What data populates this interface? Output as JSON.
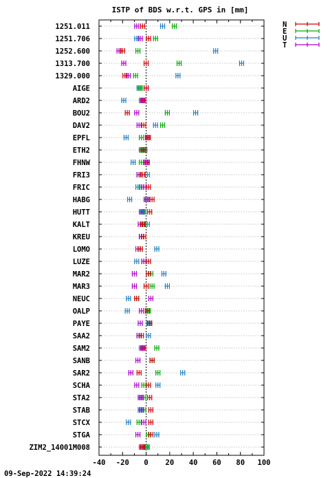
{
  "chart_data": {
    "type": "scatter",
    "title": "ISTP of BDS w.r.t. GPS in [mm]",
    "xlim": [
      -40,
      100
    ],
    "xticks": [
      -40,
      -20,
      0,
      20,
      40,
      60,
      80,
      100
    ],
    "xtick_labels": [
      "-40",
      "-20",
      "0",
      "20",
      "40",
      "60",
      "80",
      "100"
    ],
    "grid": true,
    "legend_placement": "top-right, outside plot",
    "colors": {
      "N": "#cc0000",
      "E": "#00aa00",
      "U": "#1f7fbf",
      "T": "#aa00cc"
    },
    "series": [
      {
        "name": "N",
        "color": "#cc0000"
      },
      {
        "name": "E",
        "color": "#00aa00"
      },
      {
        "name": "U",
        "color": "#1f7fbf"
      },
      {
        "name": "T",
        "color": "#aa00cc"
      }
    ],
    "categories": [
      "1251.011",
      "1251.706",
      "1252.600",
      "1313.700",
      "1329.000",
      "AIGE",
      "ARD2",
      "BOU2",
      "DAV2",
      "EPFL",
      "ETH2",
      "FHNW",
      "FRI3",
      "FRIC",
      "HABG",
      "HUTT",
      "KALT",
      "KREU",
      "LOMO",
      "LUZE",
      "MAR2",
      "MAR3",
      "NEUC",
      "OALP",
      "PAYE",
      "SAA2",
      "SAM2",
      "SANB",
      "SAR2",
      "SCHA",
      "STA2",
      "STAB",
      "STCX",
      "STGA",
      "ZIM2_14001M008"
    ],
    "points": [
      {
        "N": -3,
        "E": 24,
        "U": 14,
        "T": -8
      },
      {
        "N": 2,
        "E": 8,
        "U": -8,
        "T": -5
      },
      {
        "N": -20,
        "E": -7,
        "U": 59,
        "T": -23
      },
      {
        "N": 0,
        "E": 28,
        "U": 81,
        "T": -19
      },
      {
        "N": -18,
        "E": -9,
        "U": 27,
        "T": -15
      },
      {
        "N": 0,
        "E": -5,
        "U": -6,
        "T": 0
      },
      {
        "N": -2,
        "E": -4,
        "U": -19,
        "T": -3
      },
      {
        "N": -16,
        "E": 18,
        "U": 42,
        "T": -8
      },
      {
        "N": -2,
        "E": 14,
        "U": 8,
        "T": -6
      },
      {
        "N": 2,
        "E": -4,
        "U": -17,
        "T": 1
      },
      {
        "N": -2,
        "E": -3,
        "U": -1,
        "T": -4
      },
      {
        "N": 1,
        "E": -4,
        "U": -11,
        "T": 0
      },
      {
        "N": -3,
        "E": -6,
        "U": 1,
        "T": -6
      },
      {
        "N": 2,
        "E": -4,
        "U": -7,
        "T": -2
      },
      {
        "N": 5,
        "E": 1,
        "U": -14,
        "T": 0
      },
      {
        "N": 3,
        "E": -2,
        "U": -3,
        "T": -4
      },
      {
        "N": -3,
        "E": -2,
        "U": 1,
        "T": -5
      },
      {
        "N": -2,
        "E": -4,
        "U": -4,
        "T": -4
      },
      {
        "N": -5,
        "E": -5,
        "U": 9,
        "T": -7
      },
      {
        "N": 2,
        "E": -2,
        "U": -8,
        "T": -2
      },
      {
        "N": 2,
        "E": 4,
        "U": 15,
        "T": -10
      },
      {
        "N": 0,
        "E": 5,
        "U": 18,
        "T": -10
      },
      {
        "N": -8,
        "E": -8,
        "U": -15,
        "T": 4
      },
      {
        "N": 1,
        "E": 2,
        "U": -16,
        "T": -4
      },
      {
        "N": 3,
        "E": 3,
        "U": 2,
        "T": -5
      },
      {
        "N": -4,
        "E": -6,
        "U": 2,
        "T": -6
      },
      {
        "N": -2,
        "E": 9,
        "U": -4,
        "T": -3
      },
      {
        "N": 5,
        "E": 5,
        "U": 5,
        "T": -7
      },
      {
        "N": -6,
        "E": 10,
        "U": 31,
        "T": -13
      },
      {
        "N": 2,
        "E": -2,
        "U": 10,
        "T": -8
      },
      {
        "N": 3,
        "E": -2,
        "U": -4,
        "T": -5
      },
      {
        "N": 4,
        "E": -2,
        "U": -5,
        "T": -4
      },
      {
        "N": 4,
        "E": -6,
        "U": -15,
        "T": -2
      },
      {
        "N": 4,
        "E": 2,
        "U": 9,
        "T": -7
      },
      {
        "N": -3,
        "E": 0,
        "U": 1,
        "T": -4
      }
    ]
  },
  "footer": {
    "timestamp": "09-Sep-2022 14:39:24"
  }
}
